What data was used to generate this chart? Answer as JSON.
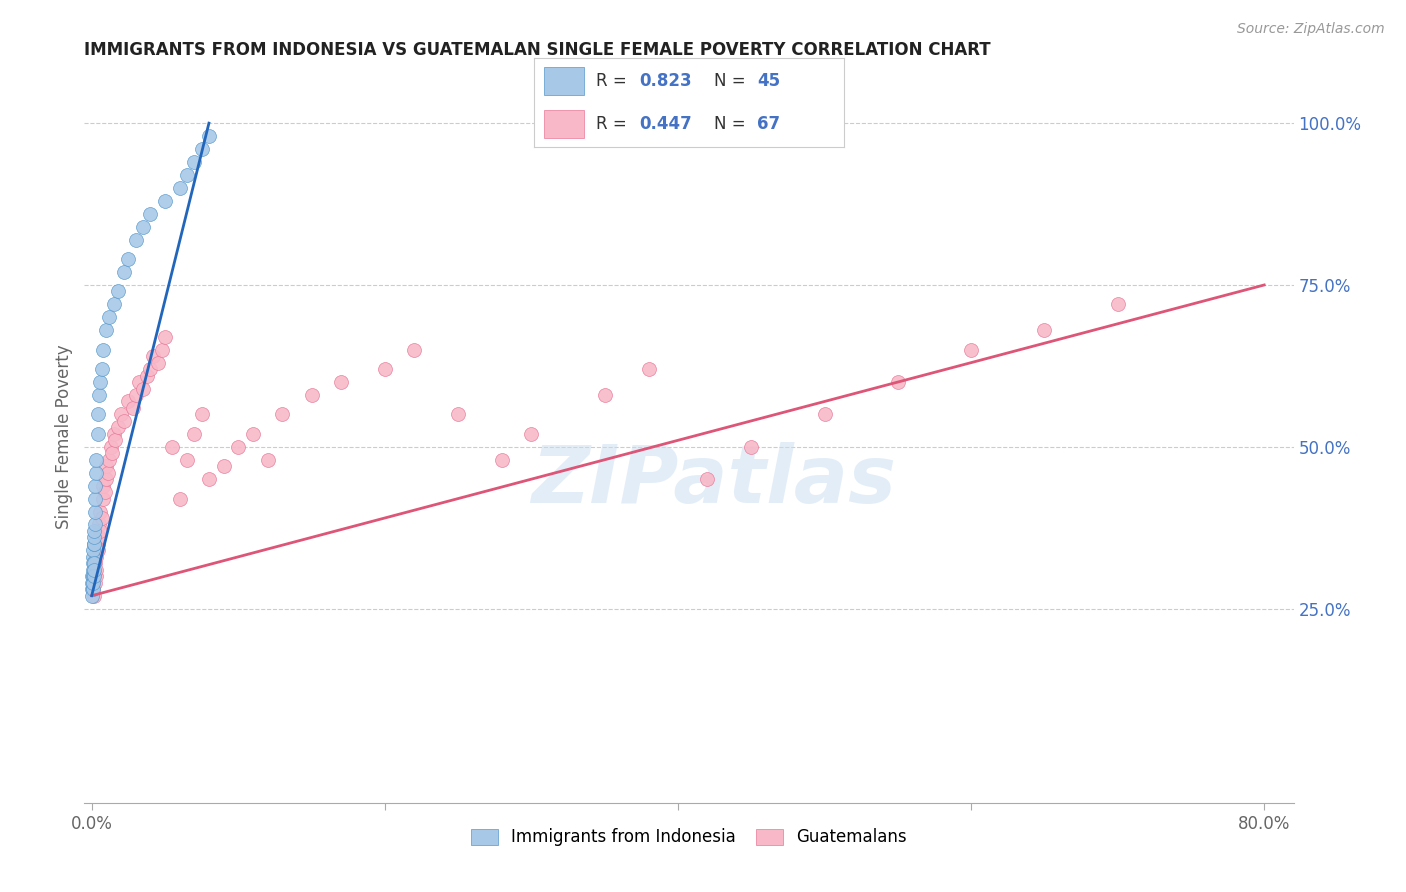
{
  "title": "IMMIGRANTS FROM INDONESIA VS GUATEMALAN SINGLE FEMALE POVERTY CORRELATION CHART",
  "source": "Source: ZipAtlas.com",
  "ylabel": "Single Female Poverty",
  "right_ytick_vals": [
    0.25,
    0.5,
    0.75,
    1.0
  ],
  "right_ytick_labels": [
    "25.0%",
    "50.0%",
    "75.0%",
    "100.0%"
  ],
  "watermark": "ZIPatlas",
  "blue_color": "#a8c8e8",
  "blue_edge_color": "#5599cc",
  "pink_color": "#f8b8c8",
  "pink_edge_color": "#e87898",
  "blue_line_color": "#2266bb",
  "pink_line_color": "#dd5577",
  "title_color": "#222222",
  "right_axis_color": "#4472C4",
  "legend_r_color": "#4472C4",
  "background_color": "#ffffff",
  "grid_color": "#cccccc",
  "xlim": [
    -0.005,
    0.82
  ],
  "ylim": [
    -0.05,
    1.08
  ],
  "x_axis_max": 0.8,
  "indonesia_x": [
    0.0002,
    0.0003,
    0.0004,
    0.0005,
    0.0006,
    0.0007,
    0.0008,
    0.0009,
    0.001,
    0.001,
    0.0012,
    0.0013,
    0.0014,
    0.0015,
    0.0016,
    0.0017,
    0.0018,
    0.0019,
    0.002,
    0.002,
    0.0022,
    0.0025,
    0.003,
    0.003,
    0.004,
    0.004,
    0.005,
    0.006,
    0.007,
    0.008,
    0.01,
    0.012,
    0.015,
    0.018,
    0.022,
    0.025,
    0.03,
    0.035,
    0.04,
    0.05,
    0.06,
    0.065,
    0.07,
    0.075,
    0.08
  ],
  "indonesia_y": [
    0.28,
    0.3,
    0.29,
    0.27,
    0.31,
    0.3,
    0.28,
    0.29,
    0.33,
    0.32,
    0.34,
    0.35,
    0.32,
    0.3,
    0.31,
    0.35,
    0.36,
    0.37,
    0.38,
    0.4,
    0.42,
    0.44,
    0.46,
    0.48,
    0.52,
    0.55,
    0.58,
    0.6,
    0.62,
    0.65,
    0.68,
    0.7,
    0.72,
    0.74,
    0.77,
    0.79,
    0.82,
    0.84,
    0.86,
    0.88,
    0.9,
    0.92,
    0.94,
    0.96,
    0.98
  ],
  "guatemala_x": [
    0.001,
    0.001,
    0.0015,
    0.002,
    0.002,
    0.003,
    0.003,
    0.003,
    0.004,
    0.004,
    0.005,
    0.005,
    0.006,
    0.006,
    0.007,
    0.008,
    0.008,
    0.009,
    0.01,
    0.01,
    0.011,
    0.012,
    0.013,
    0.014,
    0.015,
    0.016,
    0.018,
    0.02,
    0.022,
    0.025,
    0.028,
    0.03,
    0.032,
    0.035,
    0.038,
    0.04,
    0.042,
    0.045,
    0.048,
    0.05,
    0.055,
    0.06,
    0.065,
    0.07,
    0.075,
    0.08,
    0.09,
    0.1,
    0.11,
    0.12,
    0.13,
    0.15,
    0.17,
    0.2,
    0.22,
    0.25,
    0.28,
    0.3,
    0.35,
    0.38,
    0.42,
    0.45,
    0.5,
    0.55,
    0.6,
    0.65,
    0.7
  ],
  "guatemala_y": [
    0.28,
    0.3,
    0.27,
    0.29,
    0.32,
    0.3,
    0.33,
    0.31,
    0.35,
    0.34,
    0.36,
    0.38,
    0.37,
    0.4,
    0.39,
    0.42,
    0.44,
    0.43,
    0.45,
    0.47,
    0.46,
    0.48,
    0.5,
    0.49,
    0.52,
    0.51,
    0.53,
    0.55,
    0.54,
    0.57,
    0.56,
    0.58,
    0.6,
    0.59,
    0.61,
    0.62,
    0.64,
    0.63,
    0.65,
    0.67,
    0.5,
    0.42,
    0.48,
    0.52,
    0.55,
    0.45,
    0.47,
    0.5,
    0.52,
    0.48,
    0.55,
    0.58,
    0.6,
    0.62,
    0.65,
    0.55,
    0.48,
    0.52,
    0.58,
    0.62,
    0.45,
    0.5,
    0.55,
    0.6,
    0.65,
    0.68,
    0.72
  ],
  "indonesia_line_x": [
    0.0,
    0.08
  ],
  "indonesia_line_y": [
    0.27,
    1.0
  ],
  "guatemala_line_x": [
    0.0,
    0.8
  ],
  "guatemala_line_y": [
    0.27,
    0.75
  ]
}
